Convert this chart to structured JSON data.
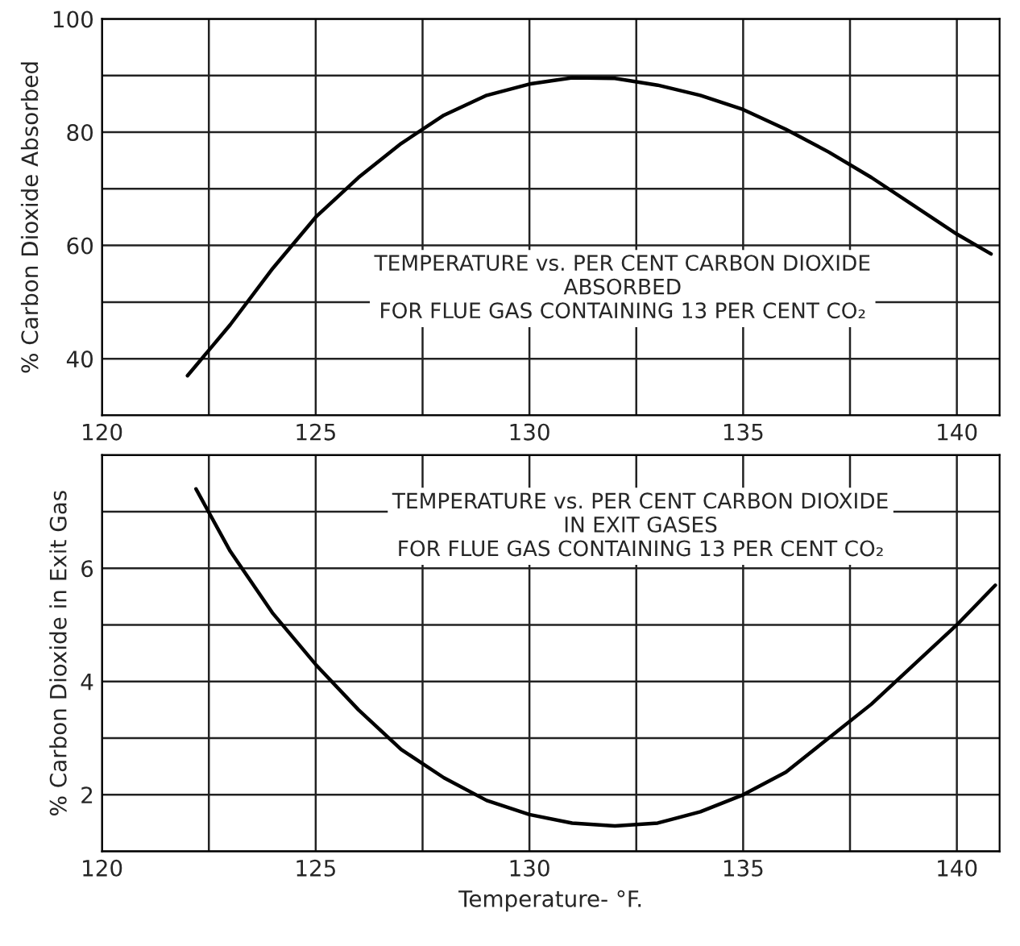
{
  "chart_data": [
    {
      "type": "line",
      "ylabel": "% Carbon Dioxide Absorbed",
      "annotations": [
        "TEMPERATURE vs. PER CENT CARBON DIOXIDE\nABSORBED\nFOR FLUE GAS CONTAINING 13 PER CENT CO₂"
      ],
      "xlim": [
        120,
        141
      ],
      "xticks": [
        120,
        {
          "value": 122.5,
          "label": null
        },
        125,
        {
          "value": 127.5,
          "label": null
        },
        130,
        {
          "value": 132.5,
          "label": null
        },
        135,
        {
          "value": 137.5,
          "label": null
        },
        140
      ],
      "ylim": [
        30,
        100
      ],
      "yticks": [
        {
          "value": 30,
          "label": null
        },
        40,
        {
          "value": 50,
          "label": null
        },
        60,
        {
          "value": 70,
          "label": null
        },
        80,
        {
          "value": 90,
          "label": null
        },
        100
      ],
      "grid": true,
      "series": [
        {
          "color": "#000000",
          "x": [
            122,
            123,
            124,
            125,
            126,
            127,
            128,
            129,
            130,
            131,
            132,
            133,
            134,
            135,
            136,
            137,
            138,
            139,
            140,
            140.8
          ],
          "values": [
            37,
            46,
            56,
            65,
            72,
            78,
            83,
            86.5,
            88.5,
            89.6,
            89.5,
            88.3,
            86.5,
            84,
            80.5,
            76.5,
            72,
            67,
            62,
            58.5
          ]
        }
      ]
    },
    {
      "type": "line",
      "ylabel": "% Carbon Dioxide in Exit Gas",
      "xlabel": "Temperature- °F.",
      "annotations": [
        "TEMPERATURE vs. PER CENT CARBON DIOXIDE\nIN EXIT GASES\nFOR FLUE GAS CONTAINING 13 PER CENT CO₂"
      ],
      "xlim": [
        120,
        141
      ],
      "xticks": [
        120,
        {
          "value": 122.5,
          "label": null
        },
        125,
        {
          "value": 127.5,
          "label": null
        },
        130,
        {
          "value": 132.5,
          "label": null
        },
        135,
        {
          "value": 137.5,
          "label": null
        },
        140
      ],
      "ylim": [
        1,
        8
      ],
      "yticks": [
        {
          "value": 1,
          "label": null
        },
        2,
        {
          "value": 3,
          "label": null
        },
        4,
        {
          "value": 5,
          "label": null
        },
        6,
        {
          "value": 7,
          "label": null
        },
        {
          "value": 8,
          "label": null
        }
      ],
      "grid": true,
      "series": [
        {
          "color": "#000000",
          "x": [
            122.2,
            123,
            124,
            125,
            126,
            127,
            128,
            129,
            130,
            131,
            132,
            133,
            134,
            135,
            136,
            137,
            138,
            139,
            140,
            140.9
          ],
          "values": [
            7.4,
            6.3,
            5.2,
            4.3,
            3.5,
            2.8,
            2.3,
            1.9,
            1.65,
            1.5,
            1.45,
            1.5,
            1.7,
            2.0,
            2.4,
            3.0,
            3.6,
            4.3,
            5.0,
            5.7
          ]
        }
      ]
    }
  ]
}
